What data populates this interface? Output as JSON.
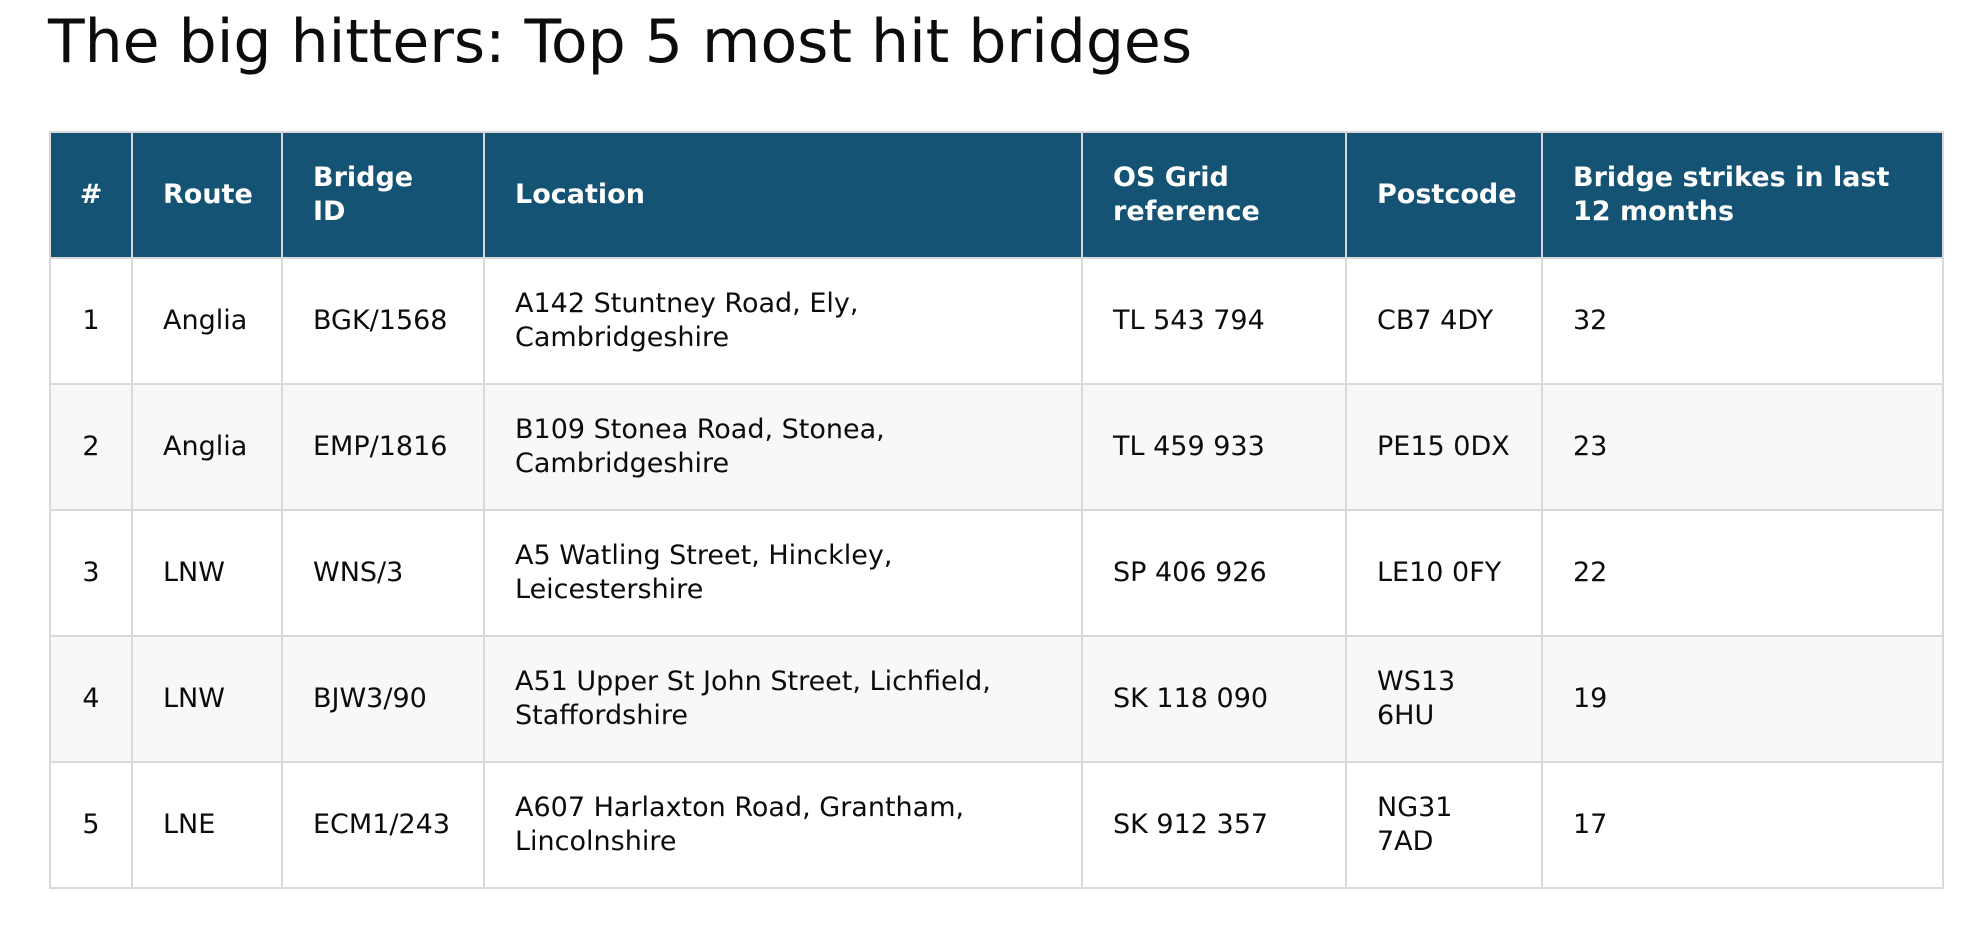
{
  "title": "The big hitters: Top 5 most hit bridges",
  "table": {
    "headers": {
      "num": "#",
      "route": "Route",
      "bridge_id": "Bridge ID",
      "location": "Location",
      "os_grid": "OS Grid reference",
      "postcode": "Postcode",
      "strikes": "Bridge strikes in last 12 months"
    },
    "rows": [
      {
        "num": "1",
        "route": "Anglia",
        "bridge_id": "BGK/1568",
        "location": "A142 Stuntney Road, Ely, Cambridgeshire",
        "os_grid": "TL 543 794",
        "postcode": "CB7 4DY",
        "strikes": "32"
      },
      {
        "num": "2",
        "route": "Anglia",
        "bridge_id": "EMP/1816",
        "location": "B109 Stonea Road, Stonea, Cambridgeshire",
        "os_grid": "TL 459 933",
        "postcode": "PE15 0DX",
        "strikes": "23"
      },
      {
        "num": "3",
        "route": "LNW",
        "bridge_id": "WNS/3",
        "location": "A5 Watling Street, Hinckley, Leicestershire",
        "os_grid": "SP 406 926",
        "postcode": "LE10 0FY",
        "strikes": "22"
      },
      {
        "num": "4",
        "route": "LNW",
        "bridge_id": "BJW3/90",
        "location": "A51 Upper St John Street, Lichfield, Staffordshire",
        "os_grid": "SK 118 090",
        "postcode": "WS13 6HU",
        "strikes": "19"
      },
      {
        "num": "5",
        "route": "LNE",
        "bridge_id": "ECM1/243",
        "location": "A607 Harlaxton Road, Grantham, Lincolnshire",
        "os_grid": "SK 912 357",
        "postcode": "NG31 7AD",
        "strikes": "17"
      }
    ]
  },
  "colors": {
    "header_background": "#145373",
    "header_text": "#ffffff",
    "row_alt_background": "#f8f8f8",
    "border": "#d9d9d9"
  }
}
